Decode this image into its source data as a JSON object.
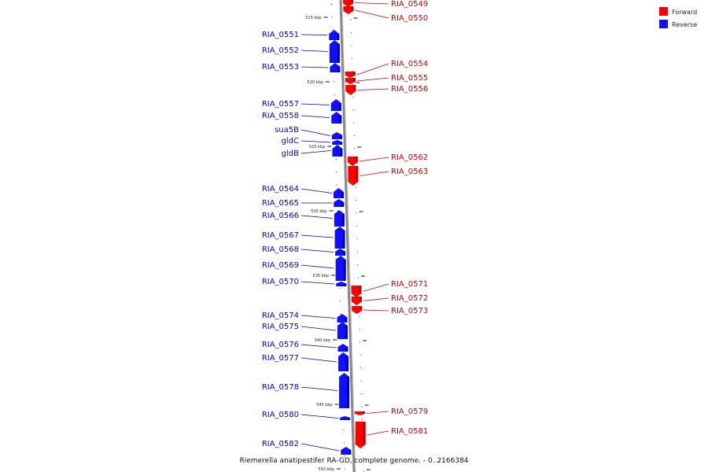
{
  "caption": "Riemerella anatipestifer RA-GD, complete genome. - 0..2166384",
  "colors": {
    "forward": "#ff0000",
    "reverse": "#1010ff",
    "backbone": "#888888"
  },
  "legend": [
    {
      "label": "Forward",
      "color": "#ff0000"
    },
    {
      "label": "Reverse",
      "color": "#1010ff"
    }
  ],
  "scale_marks": [
    {
      "kbp": 515,
      "label": "515 kbp"
    },
    {
      "kbp": 520,
      "label": "520 kbp"
    },
    {
      "kbp": 525,
      "label": "525 kbp"
    },
    {
      "kbp": 530,
      "label": "530 kbp"
    },
    {
      "kbp": 535,
      "label": "535 kbp"
    },
    {
      "kbp": 540,
      "label": "540 kbp"
    },
    {
      "kbp": 545,
      "label": "545 kbp"
    },
    {
      "kbp": 550,
      "label": "550 kbp"
    }
  ],
  "genes": [
    {
      "name": "RIA_0549",
      "strand": "forward"
    },
    {
      "name": "RIA_0550",
      "strand": "forward"
    },
    {
      "name": "RIA_0551",
      "strand": "reverse"
    },
    {
      "name": "RIA_0552",
      "strand": "reverse"
    },
    {
      "name": "RIA_0553",
      "strand": "reverse"
    },
    {
      "name": "RIA_0554",
      "strand": "forward"
    },
    {
      "name": "RIA_0555",
      "strand": "forward"
    },
    {
      "name": "RIA_0556",
      "strand": "forward"
    },
    {
      "name": "RIA_0557",
      "strand": "reverse"
    },
    {
      "name": "RIA_0558",
      "strand": "reverse"
    },
    {
      "name": "sua5B",
      "strand": "reverse"
    },
    {
      "name": "gldC",
      "strand": "reverse"
    },
    {
      "name": "gldB",
      "strand": "reverse"
    },
    {
      "name": "RIA_0562",
      "strand": "forward"
    },
    {
      "name": "RIA_0563",
      "strand": "forward"
    },
    {
      "name": "RIA_0564",
      "strand": "reverse"
    },
    {
      "name": "RIA_0565",
      "strand": "reverse"
    },
    {
      "name": "RIA_0566",
      "strand": "reverse"
    },
    {
      "name": "RIA_0567",
      "strand": "reverse"
    },
    {
      "name": "RIA_0568",
      "strand": "reverse"
    },
    {
      "name": "RIA_0569",
      "strand": "reverse"
    },
    {
      "name": "RIA_0570",
      "strand": "reverse"
    },
    {
      "name": "RIA_0571",
      "strand": "forward"
    },
    {
      "name": "RIA_0572",
      "strand": "forward"
    },
    {
      "name": "RIA_0573",
      "strand": "forward"
    },
    {
      "name": "RIA_0574",
      "strand": "reverse"
    },
    {
      "name": "RIA_0575",
      "strand": "reverse"
    },
    {
      "name": "RIA_0576",
      "strand": "reverse"
    },
    {
      "name": "RIA_0577",
      "strand": "reverse"
    },
    {
      "name": "RIA_0578",
      "strand": "reverse"
    },
    {
      "name": "RIA_0579",
      "strand": "forward"
    },
    {
      "name": "RIA_0580",
      "strand": "reverse"
    },
    {
      "name": "RIA_0581",
      "strand": "forward"
    },
    {
      "name": "RIA_0582",
      "strand": "reverse"
    }
  ]
}
